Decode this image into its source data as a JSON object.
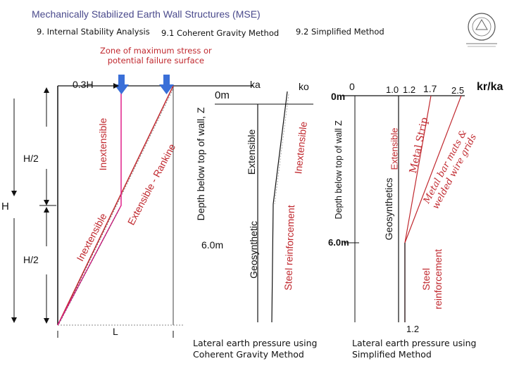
{
  "title": "Mechanically Stabilized Earth Wall Structures (MSE)",
  "breadcrumb": {
    "section": "9. Internal Stability Analysis",
    "method_1": "9.1 Coherent Gravity Method",
    "method_2": "9.2 Simplified Method"
  },
  "logo": {
    "text": "university seal"
  },
  "wall_diagram": {
    "zone_label_line1": "Zone of maximum stress or",
    "zone_label_line2": "potential failure surface",
    "label_03H": "0.3H",
    "label_H_top": "H/2",
    "label_H": "H",
    "label_H_bottom": "H/2",
    "label_L": "L",
    "label_inextensible_upper": "Inextensible",
    "label_inextensible_lower": "Inextensible",
    "label_extensible_rankine": "Extensible - Rankine",
    "colors": {
      "rankine": "#c0282e",
      "inextensible": "#e0208a",
      "arrow": "#3a6fd8",
      "text_red": "#c0282e"
    }
  },
  "coherent_chart": {
    "label_ka": "ka",
    "label_ko": "ko",
    "label_0m": "0m",
    "label_6m": "6.0m",
    "axis_label": "Depth below top of wall, Z",
    "label_extensible": "Extensible",
    "label_geosynthetic": "Geosynthetic",
    "label_inextensible": "Inextensible",
    "label_steel": "Steel reinforcement",
    "caption_line1": "Lateral earth pressure using",
    "caption_line2": "Coherent Gravity Method"
  },
  "simplified_chart": {
    "label_0": "0",
    "label_10": "1.0",
    "label_12": "1.2",
    "label_17": "1.7",
    "label_25": "2.5",
    "label_unit": "kr/ka",
    "label_0m": "0m",
    "label_6m": "6.0m",
    "axis_label": "Depth below top of wall Z",
    "label_geosynthetics": "Geosynthetics",
    "label_extensible": "Extensible",
    "label_metal_strip": "Metal Strip",
    "label_metal_bar_1": "Metal bar mats &",
    "label_metal_bar_2": "welded wire grids",
    "label_steel_1": "Steel",
    "label_steel_2": "reinforcement",
    "label_bottom_12": "1.2",
    "caption_line1": "Lateral earth pressure using",
    "caption_line2": "Simplified Method"
  }
}
